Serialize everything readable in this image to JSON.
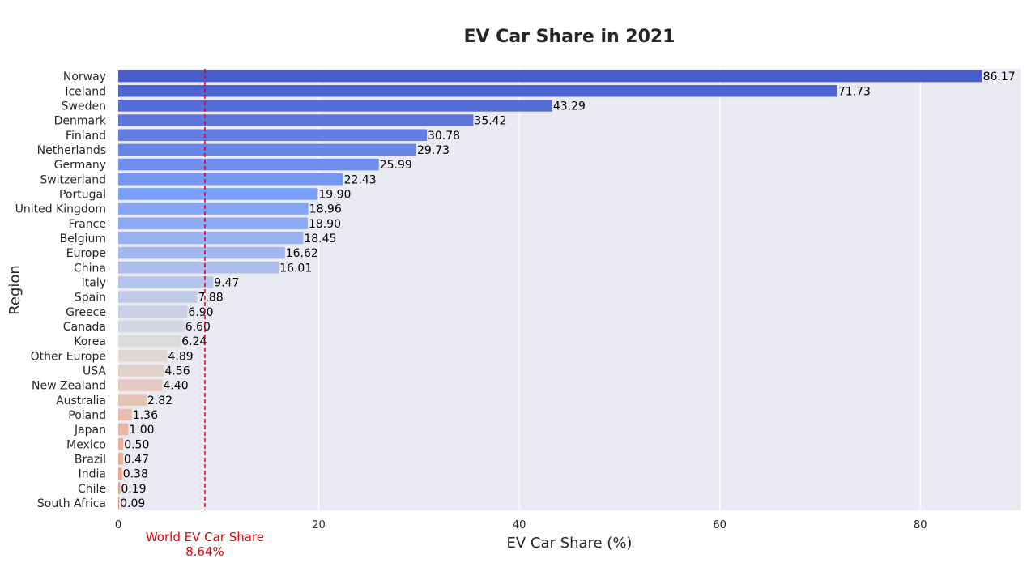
{
  "chart_data": {
    "type": "bar",
    "orientation": "horizontal",
    "title": "EV Car Share in 2021",
    "xlabel": "EV Car Share (%)",
    "ylabel": "Region",
    "xlim": [
      0,
      90
    ],
    "xticks": [
      0,
      20,
      40,
      60,
      80
    ],
    "grid": true,
    "categories": [
      "Norway",
      "Iceland",
      "Sweden",
      "Denmark",
      "Finland",
      "Netherlands",
      "Germany",
      "Switzerland",
      "Portugal",
      "United Kingdom",
      "France",
      "Belgium",
      "Europe",
      "China",
      "Italy",
      "Spain",
      "Greece",
      "Canada",
      "Korea",
      "Other Europe",
      "USA",
      "New Zealand",
      "Australia",
      "Poland",
      "Japan",
      "Mexico",
      "Brazil",
      "India",
      "Chile",
      "South Africa"
    ],
    "values": [
      86.17,
      71.73,
      43.29,
      35.42,
      30.78,
      29.73,
      25.99,
      22.43,
      19.9,
      18.96,
      18.9,
      18.45,
      16.62,
      16.01,
      9.47,
      7.88,
      6.9,
      6.6,
      6.24,
      4.89,
      4.56,
      4.4,
      2.82,
      1.36,
      1.0,
      0.5,
      0.47,
      0.38,
      0.19,
      0.09
    ],
    "value_labels": [
      "86.17",
      "71.73",
      "43.29",
      "35.42",
      "30.78",
      "29.73",
      "25.99",
      "22.43",
      "19.90",
      "18.96",
      "18.90",
      "18.45",
      "16.62",
      "16.01",
      "9.47",
      "7.88",
      "6.90",
      "6.60",
      "6.24",
      "4.89",
      "4.56",
      "4.40",
      "2.82",
      "1.36",
      "1.00",
      "0.50",
      "0.47",
      "0.38",
      "0.19",
      "0.09"
    ],
    "colormap": "coolwarm",
    "reference_line": {
      "value": 8.64,
      "label_line1": "World EV Car Share",
      "label_line2": "8.64%",
      "color": "#e8000b"
    }
  },
  "colors": {
    "plot_background": "#eaeaf2",
    "grid": "#ffffff",
    "text": "#262626",
    "value_label": "#000000"
  }
}
